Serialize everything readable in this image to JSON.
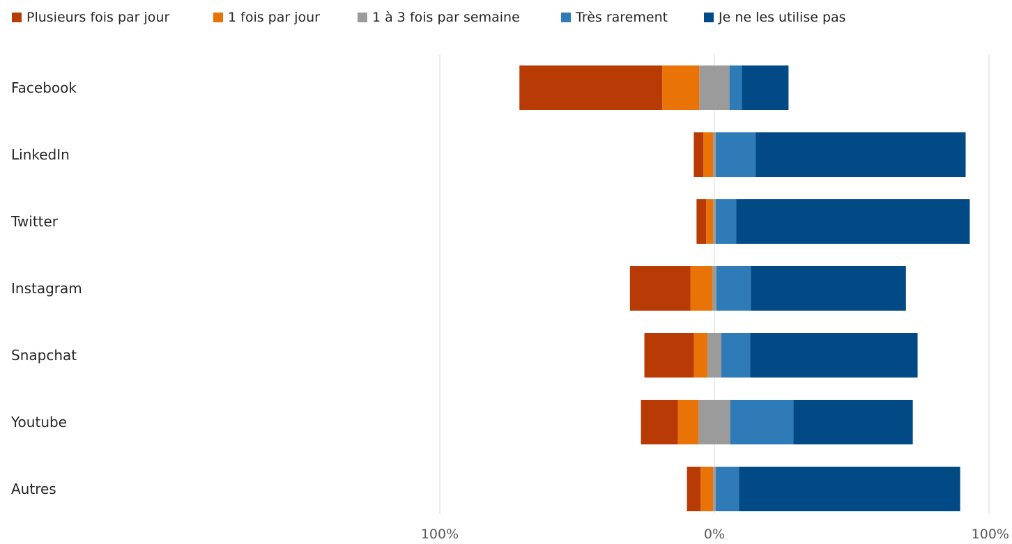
{
  "chart_data": {
    "type": "bar",
    "orientation": "horizontal",
    "stacking": "diverging",
    "categories": [
      "Facebook",
      "LinkedIn",
      "Twitter",
      "Instagram",
      "Snapchat",
      "Youtube",
      "Autres"
    ],
    "series": [
      {
        "name": "Plusieurs fois par jour",
        "color": "#B83B06",
        "values": [
          52,
          3.5,
          3.5,
          22,
          18,
          13.5,
          5
        ]
      },
      {
        "name": "1 fois par jour",
        "color": "#E97306",
        "values": [
          13.5,
          3.5,
          2.5,
          8,
          5,
          7.5,
          4.5
        ]
      },
      {
        "name": "1 à 3 fois par semaine",
        "color": "#9B9B9B",
        "values": [
          11,
          1,
          1,
          1.5,
          5,
          11.5,
          1
        ]
      },
      {
        "name": "Très rarement",
        "color": "#2E7BB8",
        "values": [
          4.5,
          14.5,
          7.5,
          12.5,
          10.5,
          23,
          8.5
        ]
      },
      {
        "name": "Je ne les utilise pas",
        "color": "#024A86",
        "values": [
          17,
          76.5,
          85,
          56.5,
          61,
          43.5,
          80.5
        ]
      }
    ],
    "diverging_split": {
      "left_series": [
        "Plusieurs fois par jour",
        "1 fois par jour"
      ],
      "center_series": "1 à 3 fois par semaine",
      "right_series": [
        "Très rarement",
        "Je ne les utilise pas"
      ]
    },
    "x_axis": {
      "range": [
        -100,
        100
      ],
      "tick_values": [
        -100,
        0,
        100
      ],
      "tick_labels": [
        "100%",
        "0%",
        "100%"
      ]
    },
    "gridlines": true,
    "legend": {
      "position": "top-left"
    }
  }
}
